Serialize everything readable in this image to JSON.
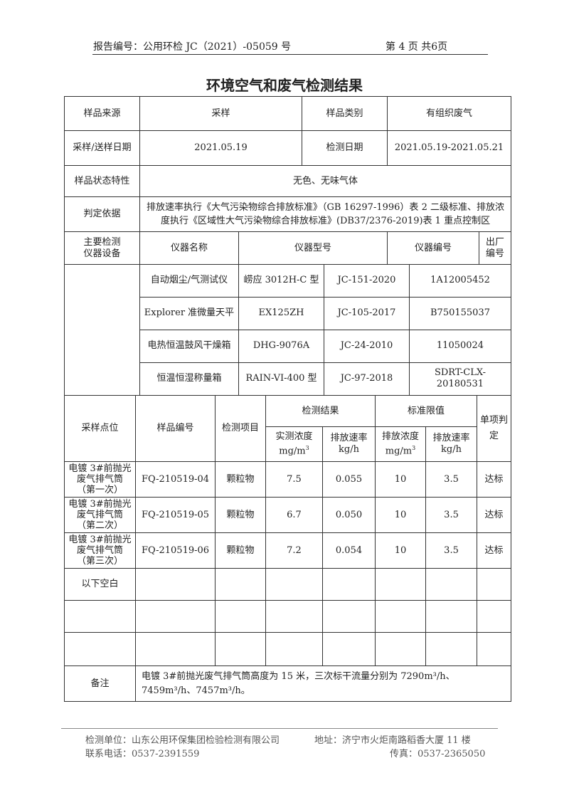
{
  "header": {
    "report_no": "报告编号：公用环检 JC（2021）-05059 号",
    "page": "第 4 页 共6页"
  },
  "title": "环境空气和废气检测结果",
  "info": {
    "source_label": "样品来源",
    "source": "采样",
    "category_label": "样品类别",
    "category": "有组织废气",
    "date_label": "采样/送样日期",
    "date": "2021.05.19",
    "test_date_label": "检测日期",
    "test_date": "2021.05.19-2021.05.21",
    "state_label": "样品状态特性",
    "state": "无色、无味气体",
    "basis_label": "判定依据",
    "basis": "排放速率执行《大气污染物综合排放标准》（GB 16297-1996）表 2 二级标准、排放浓度执行《区域性大气污染物综合排放标准》(DB37/2376-2019)表 1 重点控制区"
  },
  "instruments": {
    "label_line1": "主要检测",
    "label_line2": "仪器设备",
    "headers": [
      "仪器名称",
      "仪器型号",
      "仪器编号",
      "出厂编号"
    ],
    "rows": [
      [
        "自动烟尘/气测试仪",
        "崂应 3012H-C 型",
        "JC-151-2020",
        "1A12005452"
      ],
      [
        "Explorer 准微量天平",
        "EX125ZH",
        "JC-105-2017",
        "B750155037"
      ],
      [
        "电热恒温鼓风干燥箱",
        "DHG-9076A",
        "JC-24-2010",
        "11050024"
      ],
      [
        "恒温恒湿称量箱",
        "RAIN-VI-400 型",
        "JC-97-2018",
        "SDRT-CLX-20180531"
      ]
    ]
  },
  "results": {
    "h_point": "采样点位",
    "h_sample": "样品编号",
    "h_item": "检测项目",
    "h_result": "检测结果",
    "h_limit": "标准限值",
    "h_judge": "单项判定",
    "h_conc": "实测浓度",
    "h_rate": "排放速率",
    "h_lconc": "排放浓度",
    "h_lrate": "排放速率",
    "unit_conc": "mg/m",
    "unit_rate": "kg/h",
    "unit_lconc": "mg/m",
    "unit_lrate": "kg/h",
    "rows": [
      {
        "p1": "电镀 3#前抛光",
        "p2": "废气排气筒",
        "p3": "（第一次）",
        "id": "FQ-210519-04",
        "item": "颗粒物",
        "conc": "7.5",
        "rate": "0.055",
        "lconc": "10",
        "lrate": "3.5",
        "judge": "达标"
      },
      {
        "p1": "电镀 3#前抛光",
        "p2": "废气排气筒",
        "p3": "（第二次）",
        "id": "FQ-210519-05",
        "item": "颗粒物",
        "conc": "6.7",
        "rate": "0.050",
        "lconc": "10",
        "lrate": "3.5",
        "judge": "达标"
      },
      {
        "p1": "电镀 3#前抛光",
        "p2": "废气排气筒",
        "p3": "（第三次）",
        "id": "FQ-210519-06",
        "item": "颗粒物",
        "conc": "7.2",
        "rate": "0.054",
        "lconc": "10",
        "lrate": "3.5",
        "judge": "达标"
      }
    ],
    "blank": "以下空白"
  },
  "remark": {
    "label": "备注",
    "text": "电镀 3#前抛光废气排气筒高度为 15 米，三次标干流量分别为 7290m³/h、7459m³/h、7457m³/h。"
  },
  "footer": {
    "unit": "检测单位：山东公用环保集团检验检测有限公司",
    "address": "地址：济宁市火炬南路稻香大厦 11 楼",
    "phone": "联系电话：0537-2391559",
    "fax": "传真：0537-2365050"
  }
}
